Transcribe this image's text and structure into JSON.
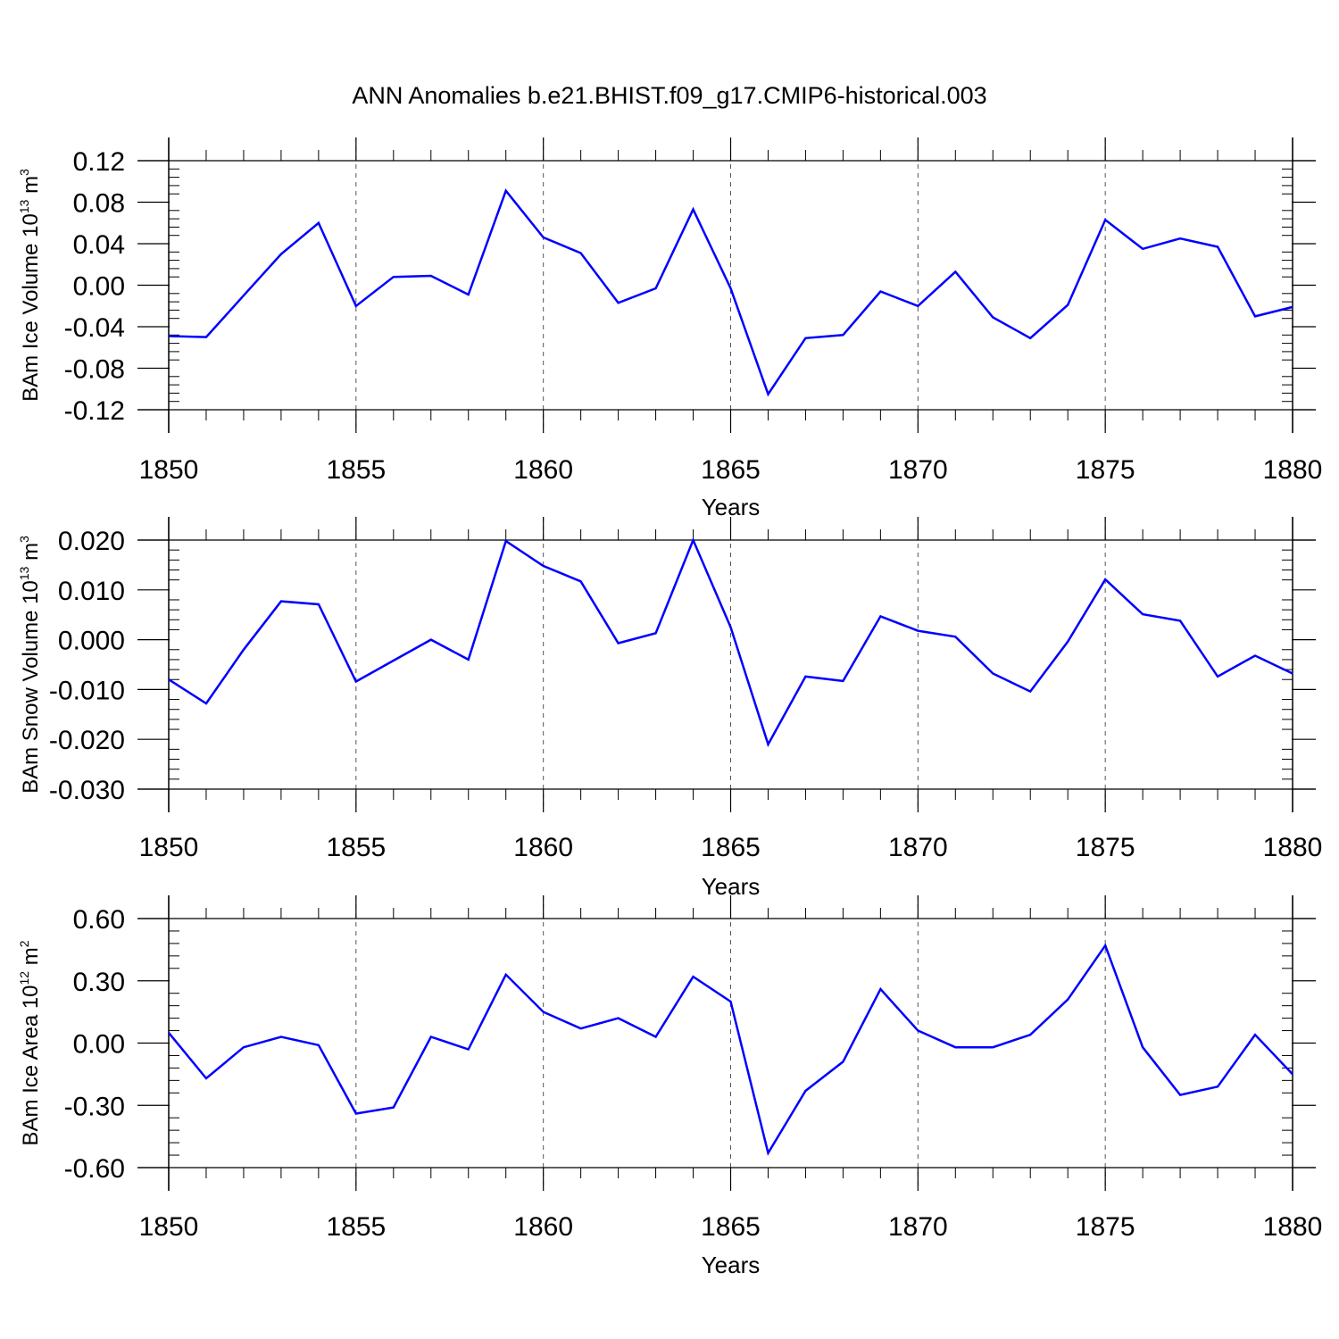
{
  "title": "ANN Anomalies b.e21.BHIST.f09_g17.CMIP6-historical.003",
  "colors": {
    "series": "#0000ff",
    "axis": "#000000",
    "grid": "#000000"
  },
  "chart_data": [
    {
      "type": "line",
      "ylabel_main": "BAm Ice Volume 10",
      "ylabel_exp": "13",
      "ylabel_unit": " m",
      "ylabel_unit_exp": "3",
      "xlabel": "Years",
      "xlim": [
        1850,
        1880
      ],
      "ylim": [
        -0.12,
        0.12
      ],
      "yticks": [
        -0.12,
        -0.08,
        -0.04,
        0.0,
        0.04,
        0.08,
        0.12
      ],
      "ytick_labels": [
        "-0.12",
        "-0.08",
        "-0.04",
        "0.00",
        "0.04",
        "0.08",
        "0.12"
      ],
      "xticks": [
        1850,
        1855,
        1860,
        1865,
        1870,
        1875,
        1880
      ],
      "xtick_labels": [
        "1850",
        "1855",
        "1860",
        "1865",
        "1870",
        "1875",
        "1880"
      ],
      "grid": "vertical dashed at major x ticks",
      "x": [
        1850,
        1851,
        1852,
        1853,
        1854,
        1855,
        1856,
        1857,
        1858,
        1859,
        1860,
        1861,
        1862,
        1863,
        1864,
        1865,
        1866,
        1867,
        1868,
        1869,
        1870,
        1871,
        1872,
        1873,
        1874,
        1875,
        1876,
        1877,
        1878,
        1879,
        1880
      ],
      "values": [
        -0.049,
        -0.05,
        -0.01,
        0.03,
        0.06,
        -0.02,
        0.008,
        0.009,
        -0.009,
        0.091,
        0.046,
        0.031,
        -0.017,
        -0.003,
        0.073,
        -0.003,
        -0.105,
        -0.051,
        -0.048,
        -0.006,
        -0.02,
        0.013,
        -0.031,
        -0.051,
        -0.019,
        0.063,
        0.035,
        0.045,
        0.037,
        -0.03,
        -0.021
      ]
    },
    {
      "type": "line",
      "ylabel_main": "BAm Snow Volume 10",
      "ylabel_exp": "13",
      "ylabel_unit": " m",
      "ylabel_unit_exp": "3",
      "xlabel": "Years",
      "xlim": [
        1850,
        1880
      ],
      "ylim": [
        -0.03,
        0.02
      ],
      "yticks": [
        -0.03,
        -0.02,
        -0.01,
        0.0,
        0.01,
        0.02
      ],
      "ytick_labels": [
        "-0.030",
        "-0.020",
        "-0.010",
        "0.000",
        "0.010",
        "0.020"
      ],
      "xticks": [
        1850,
        1855,
        1860,
        1865,
        1870,
        1875,
        1880
      ],
      "xtick_labels": [
        "1850",
        "1855",
        "1860",
        "1865",
        "1870",
        "1875",
        "1880"
      ],
      "grid": "vertical dashed at major x ticks",
      "x": [
        1850,
        1851,
        1852,
        1853,
        1854,
        1855,
        1856,
        1857,
        1858,
        1859,
        1860,
        1861,
        1862,
        1863,
        1864,
        1865,
        1866,
        1867,
        1868,
        1869,
        1870,
        1871,
        1872,
        1873,
        1874,
        1875,
        1876,
        1877,
        1878,
        1879,
        1880
      ],
      "values": [
        -0.008,
        -0.0128,
        -0.002,
        0.0077,
        0.0071,
        -0.0084,
        -0.0042,
        0.0,
        -0.004,
        0.0198,
        0.0148,
        0.0117,
        -0.0007,
        0.0013,
        0.02,
        0.0025,
        -0.021,
        -0.0074,
        -0.0083,
        0.0047,
        0.0018,
        0.0006,
        -0.0068,
        -0.0104,
        -0.0004,
        0.0121,
        0.0051,
        0.0038,
        -0.0074,
        -0.0032,
        -0.0068
      ]
    },
    {
      "type": "line",
      "ylabel_main": "BAm Ice Area 10",
      "ylabel_exp": "12",
      "ylabel_unit": " m",
      "ylabel_unit_exp": "2",
      "xlabel": "Years",
      "xlim": [
        1850,
        1880
      ],
      "ylim": [
        -0.6,
        0.6
      ],
      "yticks": [
        -0.6,
        -0.3,
        0.0,
        0.3,
        0.6
      ],
      "ytick_labels": [
        "-0.60",
        "-0.30",
        "0.00",
        "0.30",
        "0.60"
      ],
      "xticks": [
        1850,
        1855,
        1860,
        1865,
        1870,
        1875,
        1880
      ],
      "xtick_labels": [
        "1850",
        "1855",
        "1860",
        "1865",
        "1870",
        "1875",
        "1880"
      ],
      "grid": "vertical dashed at major x ticks",
      "x": [
        1850,
        1851,
        1852,
        1853,
        1854,
        1855,
        1856,
        1857,
        1858,
        1859,
        1860,
        1861,
        1862,
        1863,
        1864,
        1865,
        1866,
        1867,
        1868,
        1869,
        1870,
        1871,
        1872,
        1873,
        1874,
        1875,
        1876,
        1877,
        1878,
        1879,
        1880
      ],
      "values": [
        0.05,
        -0.17,
        -0.02,
        0.03,
        -0.01,
        -0.34,
        -0.31,
        0.03,
        -0.03,
        0.33,
        0.15,
        0.07,
        0.12,
        0.03,
        0.32,
        0.2,
        -0.53,
        -0.23,
        -0.09,
        0.26,
        0.06,
        -0.02,
        -0.02,
        0.04,
        0.21,
        0.47,
        -0.02,
        -0.25,
        -0.21,
        0.04,
        -0.15
      ]
    }
  ]
}
